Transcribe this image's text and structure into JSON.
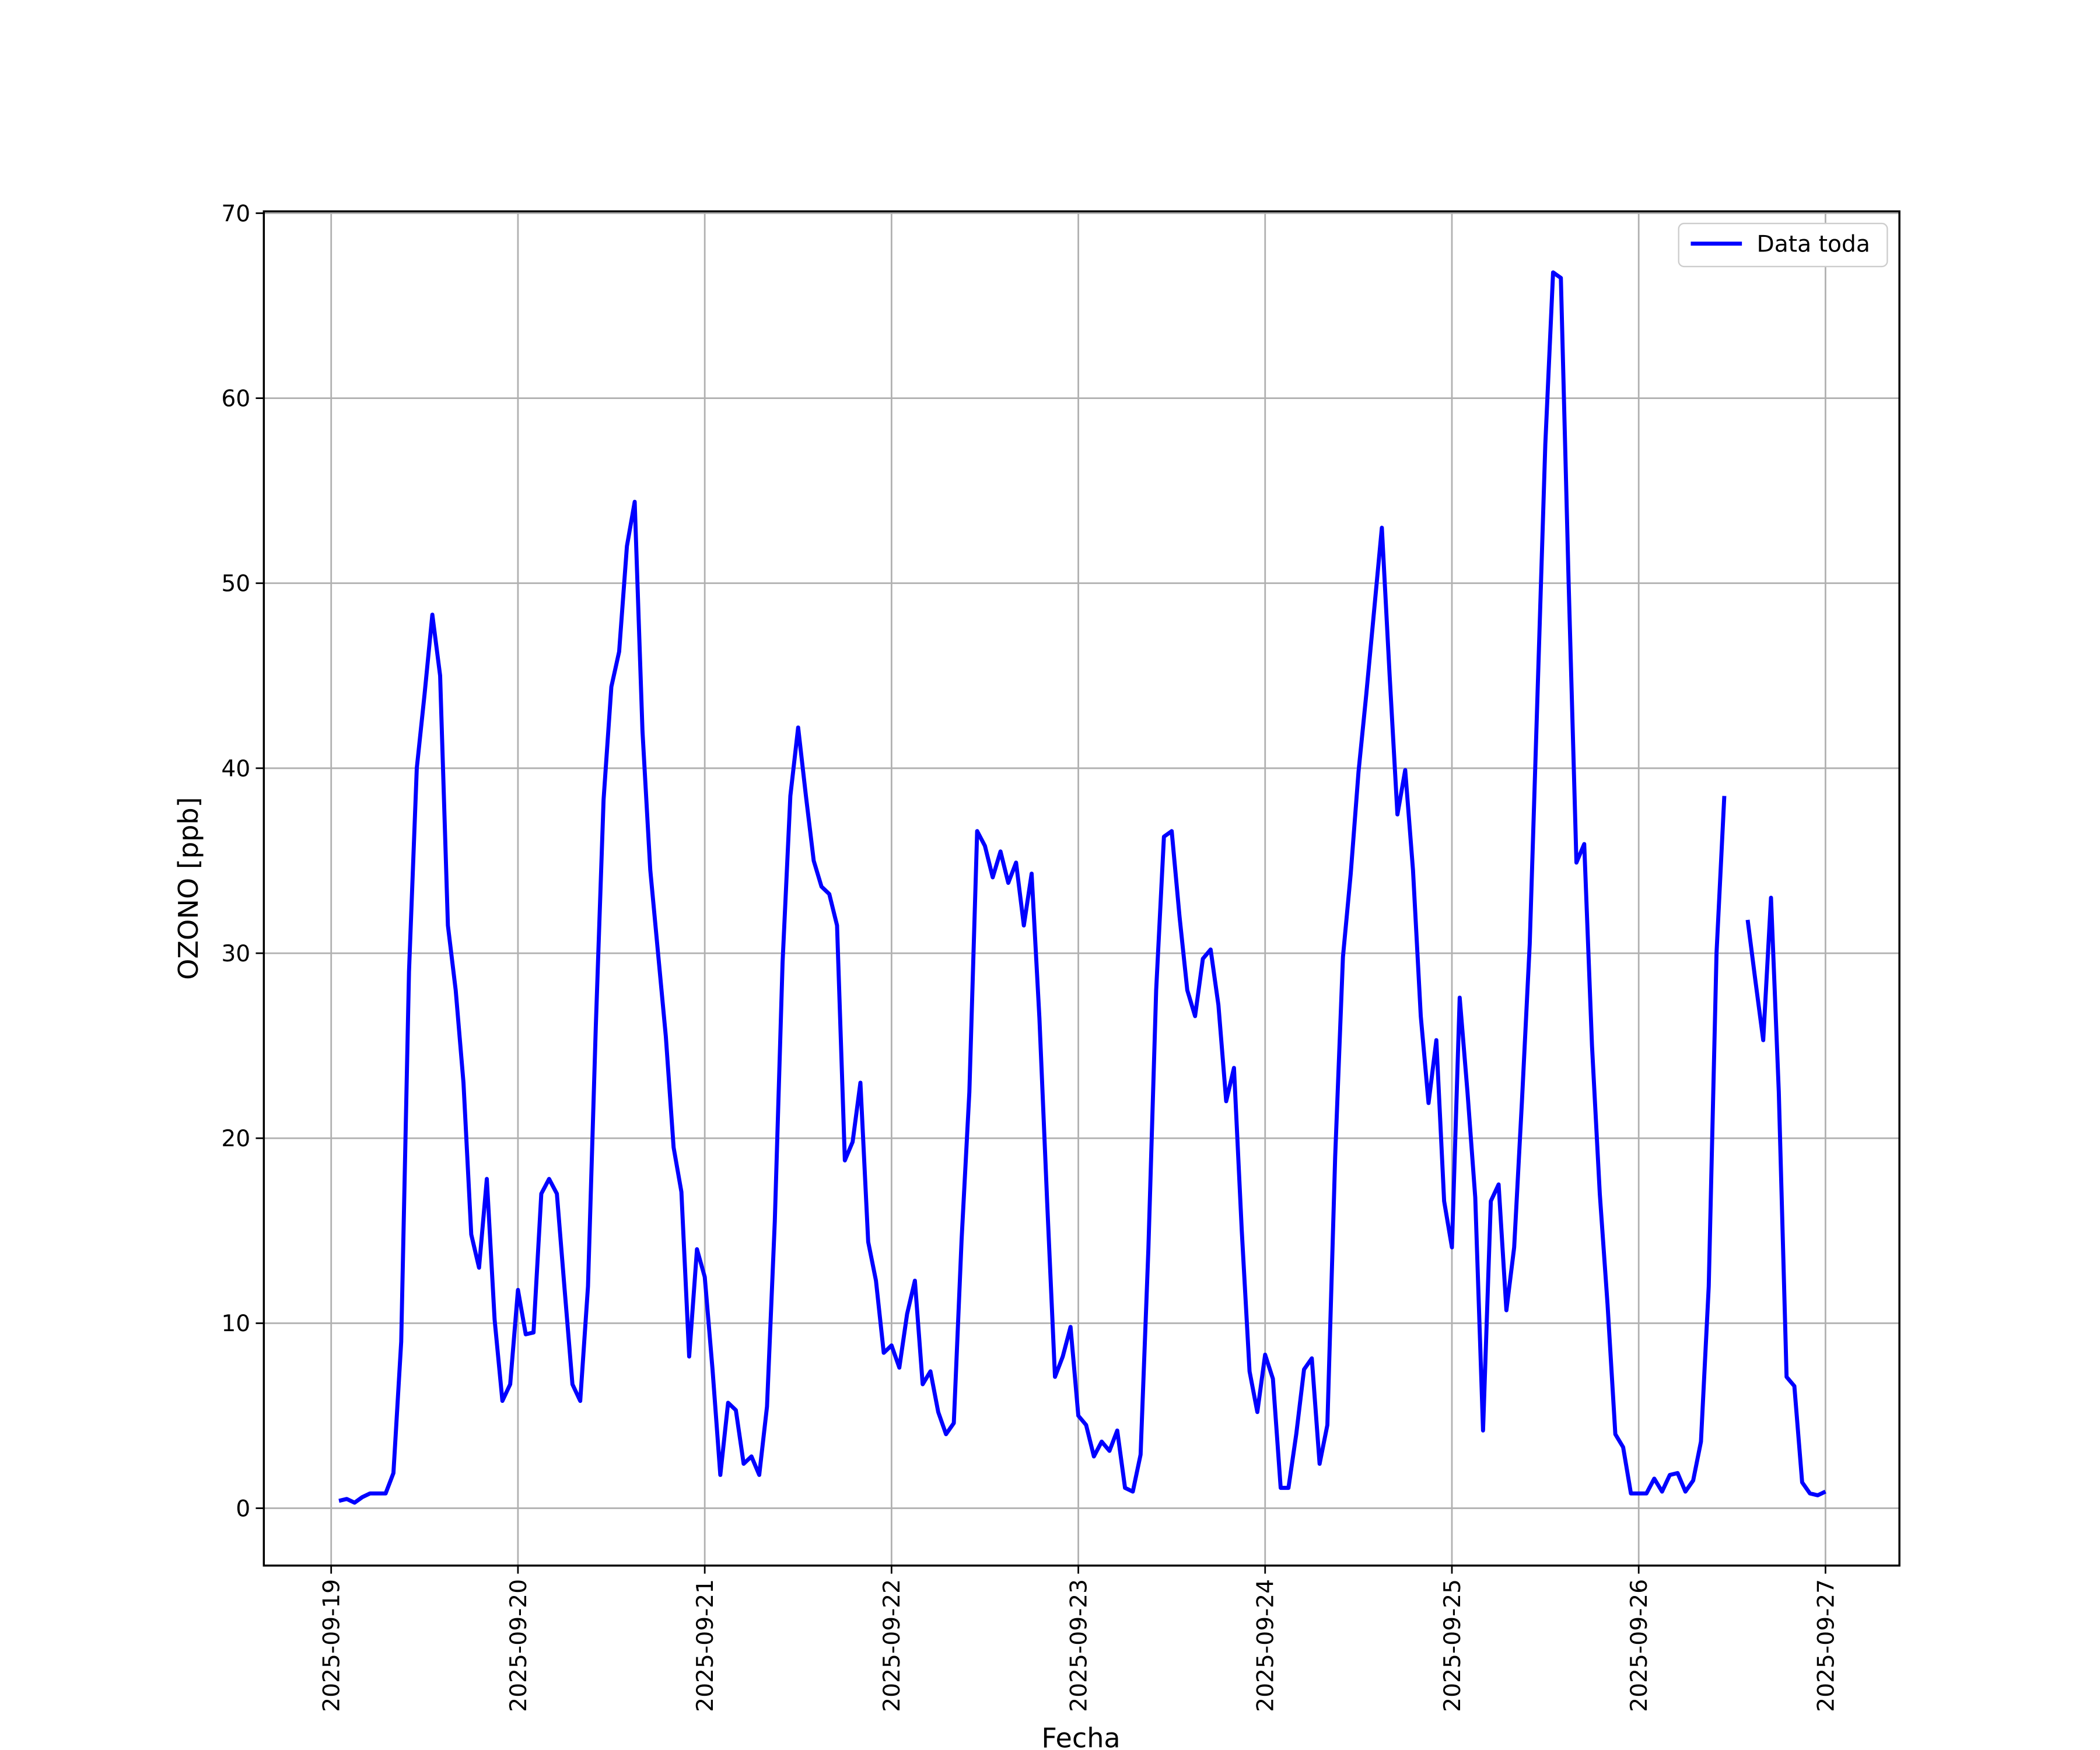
{
  "chart_data": {
    "type": "line",
    "xlabel": "Fecha",
    "ylabel": "OZONO [ppb]",
    "x": [
      "2025-09-19T01:00",
      "2025-09-19T02:00",
      "2025-09-19T03:00",
      "2025-09-19T04:00",
      "2025-09-19T05:00",
      "2025-09-19T06:00",
      "2025-09-19T07:00",
      "2025-09-19T08:00",
      "2025-09-19T09:00",
      "2025-09-19T10:00",
      "2025-09-19T11:00",
      "2025-09-19T12:00",
      "2025-09-19T13:00",
      "2025-09-19T14:00",
      "2025-09-19T15:00",
      "2025-09-19T16:00",
      "2025-09-19T17:00",
      "2025-09-19T18:00",
      "2025-09-19T19:00",
      "2025-09-19T20:00",
      "2025-09-19T21:00",
      "2025-09-19T22:00",
      "2025-09-19T23:00",
      "2025-09-20T00:00",
      "2025-09-20T01:00",
      "2025-09-20T02:00",
      "2025-09-20T03:00",
      "2025-09-20T04:00",
      "2025-09-20T05:00",
      "2025-09-20T06:00",
      "2025-09-20T07:00",
      "2025-09-20T08:00",
      "2025-09-20T09:00",
      "2025-09-20T10:00",
      "2025-09-20T11:00",
      "2025-09-20T12:00",
      "2025-09-20T13:00",
      "2025-09-20T14:00",
      "2025-09-20T15:00",
      "2025-09-20T16:00",
      "2025-09-20T17:00",
      "2025-09-20T18:00",
      "2025-09-20T19:00",
      "2025-09-20T20:00",
      "2025-09-20T21:00",
      "2025-09-20T22:00",
      "2025-09-20T23:00",
      "2025-09-21T00:00",
      "2025-09-21T01:00",
      "2025-09-21T02:00",
      "2025-09-21T03:00",
      "2025-09-21T04:00",
      "2025-09-21T05:00",
      "2025-09-21T06:00",
      "2025-09-21T07:00",
      "2025-09-21T08:00",
      "2025-09-21T09:00",
      "2025-09-21T10:00",
      "2025-09-21T11:00",
      "2025-09-21T12:00",
      "2025-09-21T13:00",
      "2025-09-21T14:00",
      "2025-09-21T15:00",
      "2025-09-21T16:00",
      "2025-09-21T17:00",
      "2025-09-21T18:00",
      "2025-09-21T19:00",
      "2025-09-21T20:00",
      "2025-09-21T21:00",
      "2025-09-21T22:00",
      "2025-09-21T23:00",
      "2025-09-22T00:00",
      "2025-09-22T01:00",
      "2025-09-22T02:00",
      "2025-09-22T03:00",
      "2025-09-22T04:00",
      "2025-09-22T05:00",
      "2025-09-22T06:00",
      "2025-09-22T07:00",
      "2025-09-22T08:00",
      "2025-09-22T09:00",
      "2025-09-22T10:00",
      "2025-09-22T11:00",
      "2025-09-22T12:00",
      "2025-09-22T13:00",
      "2025-09-22T14:00",
      "2025-09-22T15:00",
      "2025-09-22T16:00",
      "2025-09-22T17:00",
      "2025-09-22T18:00",
      "2025-09-22T19:00",
      "2025-09-22T20:00",
      "2025-09-22T21:00",
      "2025-09-22T22:00",
      "2025-09-22T23:00",
      "2025-09-23T00:00",
      "2025-09-23T01:00",
      "2025-09-23T02:00",
      "2025-09-23T03:00",
      "2025-09-23T04:00",
      "2025-09-23T05:00",
      "2025-09-23T06:00",
      "2025-09-23T07:00",
      "2025-09-23T08:00",
      "2025-09-23T09:00",
      "2025-09-23T10:00",
      "2025-09-23T11:00",
      "2025-09-23T12:00",
      "2025-09-23T13:00",
      "2025-09-23T14:00",
      "2025-09-23T15:00",
      "2025-09-23T16:00",
      "2025-09-23T17:00",
      "2025-09-23T18:00",
      "2025-09-23T19:00",
      "2025-09-23T20:00",
      "2025-09-23T21:00",
      "2025-09-23T22:00",
      "2025-09-23T23:00",
      "2025-09-24T00:00",
      "2025-09-24T01:00",
      "2025-09-24T02:00",
      "2025-09-24T03:00",
      "2025-09-24T04:00",
      "2025-09-24T05:00",
      "2025-09-24T06:00",
      "2025-09-24T07:00",
      "2025-09-24T08:00",
      "2025-09-24T09:00",
      "2025-09-24T10:00",
      "2025-09-24T11:00",
      "2025-09-24T12:00",
      "2025-09-24T13:00",
      "2025-09-24T14:00",
      "2025-09-24T15:00",
      "2025-09-24T16:00",
      "2025-09-24T17:00",
      "2025-09-24T18:00",
      "2025-09-24T19:00",
      "2025-09-24T20:00",
      "2025-09-24T21:00",
      "2025-09-24T22:00",
      "2025-09-24T23:00",
      "2025-09-25T00:00",
      "2025-09-25T01:00",
      "2025-09-25T02:00",
      "2025-09-25T03:00",
      "2025-09-25T04:00",
      "2025-09-25T05:00",
      "2025-09-25T06:00",
      "2025-09-25T07:00",
      "2025-09-25T08:00",
      "2025-09-25T09:00",
      "2025-09-25T10:00",
      "2025-09-25T11:00",
      "2025-09-25T12:00",
      "2025-09-25T13:00",
      "2025-09-25T14:00",
      "2025-09-25T15:00",
      "2025-09-25T16:00",
      "2025-09-25T17:00",
      "2025-09-25T18:00",
      "2025-09-25T19:00",
      "2025-09-25T20:00",
      "2025-09-25T21:00",
      "2025-09-25T22:00",
      "2025-09-25T23:00",
      "2025-09-26T00:00",
      "2025-09-26T01:00",
      "2025-09-26T02:00",
      "2025-09-26T03:00",
      "2025-09-26T04:00",
      "2025-09-26T05:00",
      "2025-09-26T06:00",
      "2025-09-26T07:00",
      "2025-09-26T08:00",
      "2025-09-26T09:00",
      "2025-09-26T10:00",
      "2025-09-26T11:00",
      "2025-09-26T12:00",
      "2025-09-26T13:00",
      "2025-09-26T14:00",
      "2025-09-26T15:00",
      "2025-09-26T16:00",
      "2025-09-26T17:00",
      "2025-09-26T18:00",
      "2025-09-26T19:00",
      "2025-09-26T20:00",
      "2025-09-26T21:00",
      "2025-09-26T22:00",
      "2025-09-26T23:00",
      "2025-09-27T00:00"
    ],
    "series": [
      {
        "name": "Data toda",
        "color": "#0000ff",
        "values": [
          0.4,
          0.5,
          0.3,
          0.6,
          0.8,
          0.8,
          0.8,
          1.9,
          9,
          29,
          40,
          44,
          48.3,
          45,
          31.5,
          28,
          23,
          14.8,
          13,
          17.8,
          10.2,
          5.8,
          6.7,
          11.8,
          9.4,
          9.5,
          17,
          17.8,
          17,
          11.8,
          6.7,
          5.8,
          12,
          26,
          38.3,
          44.4,
          46.3,
          52,
          54.4,
          42,
          34.5,
          30,
          25.5,
          19.5,
          17.1,
          8.2,
          14,
          12.5,
          7.5,
          1.8,
          5.7,
          5.3,
          2.4,
          2.8,
          1.8,
          5.5,
          15.5,
          29.5,
          38.5,
          42.2,
          38.5,
          35,
          33.6,
          33.2,
          31.5,
          18.8,
          19.8,
          23,
          14.4,
          12.3,
          8.4,
          8.8,
          7.6,
          10.5,
          12.3,
          6.7,
          7.4,
          5.2,
          4,
          4.6,
          14.5,
          22.5,
          36.6,
          35.8,
          34.1,
          35.5,
          33.8,
          34.9,
          31.5,
          34.3,
          26.5,
          16.5,
          7.1,
          8.2,
          9.8,
          5,
          4.5,
          2.8,
          3.6,
          3.1,
          4.2,
          1.1,
          0.9,
          2.9,
          14,
          28,
          36.3,
          36.6,
          32,
          28,
          26.6,
          29.7,
          30.2,
          27.2,
          22,
          23.8,
          15,
          7.4,
          5.2,
          8.3,
          7,
          1.1,
          1.1,
          4,
          7.5,
          8.1,
          2.4,
          4.5,
          19,
          29.8,
          34.3,
          39.8,
          44,
          48.5,
          53,
          45,
          37.5,
          39.9,
          34.5,
          26.6,
          21.9,
          25.3,
          16.6,
          14.1,
          27.6,
          22.5,
          16.8,
          4.2,
          16.6,
          17.5,
          10.7,
          14.1,
          22,
          30.5,
          44,
          57.5,
          66.8,
          66.5,
          50,
          34.9,
          35.9,
          25,
          17,
          11,
          4,
          3.3,
          0.8,
          0.8,
          0.8,
          1.6,
          0.9,
          1.8,
          1.9,
          0.9,
          1.5,
          3.6,
          12,
          30,
          38.5,
          null,
          null,
          31.8,
          28.5,
          25.3,
          33,
          22.5,
          7.1,
          6.6,
          1.4,
          0.8,
          0.7,
          0.9
        ]
      }
    ],
    "xlim": [
      "2025-09-18T15:21",
      "2025-09-27T09:30"
    ],
    "xticks": [
      "2025-09-19",
      "2025-09-20",
      "2025-09-21",
      "2025-09-22",
      "2025-09-23",
      "2025-09-24",
      "2025-09-25",
      "2025-09-26",
      "2025-09-27"
    ],
    "ylim": [
      -3.1,
      70.1
    ],
    "yticks": [
      0,
      10,
      20,
      30,
      40,
      50,
      60,
      70
    ],
    "grid": true,
    "legend": "upper right"
  }
}
